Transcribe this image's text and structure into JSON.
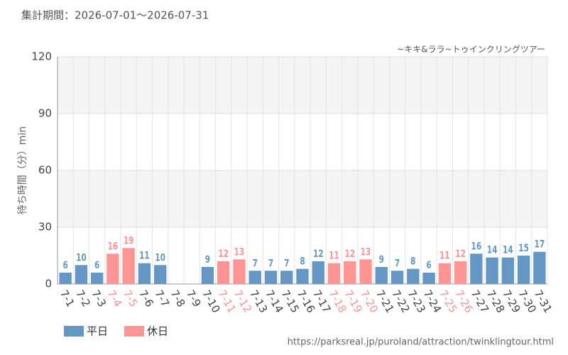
{
  "chart_data": {
    "type": "bar",
    "title": "集計期間：2026-07-01～2026-07-31",
    "subtitle": "~キキ&ララ~トゥインクリングツアー",
    "y_label": "待ち時間（分）min",
    "source": "https://parksreal.jp/puroland/attraction/twinklingtour.html",
    "categories": [
      "7-1",
      "7-2",
      "7-3",
      "7-4",
      "7-5",
      "7-6",
      "7-7",
      "7-8",
      "7-9",
      "7-10",
      "7-11",
      "7-12",
      "7-13",
      "7-14",
      "7-15",
      "7-16",
      "7-17",
      "7-18",
      "7-19",
      "7-20",
      "7-21",
      "7-22",
      "7-23",
      "7-24",
      "7-25",
      "7-26",
      "7-27",
      "7-28",
      "7-29",
      "7-30",
      "7-31"
    ],
    "series": [
      {
        "name": "平日",
        "color": "#6497c3",
        "values": [
          6,
          10,
          6,
          null,
          null,
          11,
          10,
          null,
          null,
          9,
          null,
          null,
          7,
          7,
          7,
          8,
          12,
          null,
          null,
          null,
          9,
          7,
          8,
          6,
          null,
          null,
          16,
          14,
          14,
          15,
          17
        ]
      },
      {
        "name": "休日",
        "color": "#ff9494",
        "values": [
          null,
          null,
          null,
          16,
          19,
          null,
          null,
          null,
          null,
          null,
          12,
          13,
          null,
          null,
          null,
          null,
          null,
          11,
          12,
          13,
          null,
          null,
          null,
          null,
          11,
          12,
          null,
          null,
          null,
          null,
          null
        ]
      }
    ],
    "ylim": [
      0,
      120
    ],
    "yticks": [
      0,
      30,
      60,
      90,
      120
    ],
    "grid": true,
    "legend": "bottom-left"
  }
}
